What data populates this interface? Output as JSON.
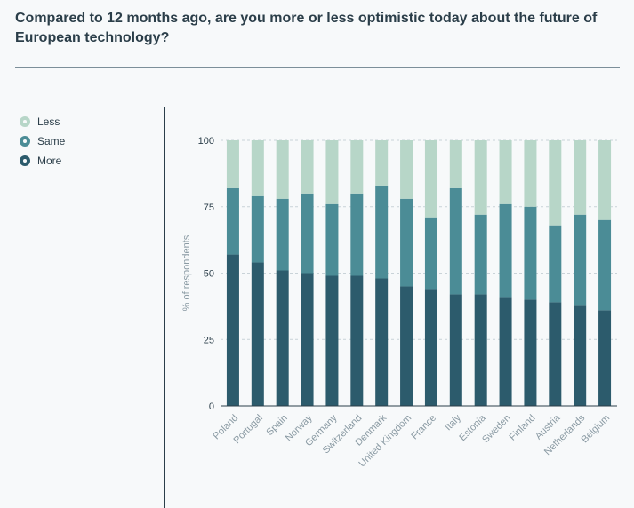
{
  "title": "Compared to 12 months ago, are you more or less optimistic today about the future of European technology?",
  "legend": {
    "items": [
      {
        "label": "Less",
        "color": "#b7d6c8"
      },
      {
        "label": "Same",
        "color": "#4b8c96"
      },
      {
        "label": "More",
        "color": "#2c5b6c"
      }
    ]
  },
  "chart_data": {
    "type": "bar",
    "stacked": true,
    "title": "",
    "xlabel": "",
    "ylabel": "% of respondents",
    "ylim": [
      0,
      100
    ],
    "yticks": [
      0,
      25,
      50,
      75,
      100
    ],
    "grid": true,
    "legend_position": "left",
    "categories": [
      "Poland",
      "Portugal",
      "Spain",
      "Norway",
      "Germany",
      "Switzerland",
      "Denmark",
      "United Kingdom",
      "France",
      "Italy",
      "Estonia",
      "Sweden",
      "Finland",
      "Austria",
      "Netherlands",
      "Belgium"
    ],
    "series": [
      {
        "name": "More",
        "color": "#2c5b6c",
        "values": [
          57,
          54,
          51,
          50,
          49,
          49,
          48,
          45,
          44,
          42,
          42,
          41,
          40,
          39,
          38,
          36
        ]
      },
      {
        "name": "Same",
        "color": "#4b8c96",
        "values": [
          25,
          25,
          27,
          30,
          27,
          31,
          35,
          33,
          27,
          40,
          30,
          35,
          35,
          29,
          34,
          34
        ]
      },
      {
        "name": "Less",
        "color": "#b7d6c8",
        "values": [
          18,
          21,
          22,
          20,
          24,
          20,
          17,
          22,
          29,
          18,
          28,
          24,
          25,
          32,
          28,
          30
        ]
      }
    ]
  }
}
